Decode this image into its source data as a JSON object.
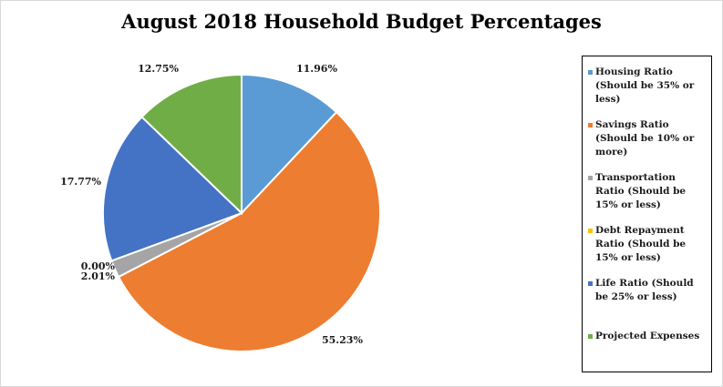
{
  "chart_data": {
    "type": "pie",
    "title": "August 2018 Household Budget Percentages",
    "start_angle_deg": 0,
    "slices": [
      {
        "label": "Housing Ratio (Should be 35% or less)",
        "value": 11.96,
        "display": "11.96%",
        "color": "#5B9BD5"
      },
      {
        "label": "Savings Ratio (Should be 10% or more)",
        "value": 55.23,
        "display": "55.23%",
        "color": "#ED7D31"
      },
      {
        "label": "Transportation Ratio (Should be 15% or less)",
        "value": 2.01,
        "display": "2.01%",
        "color": "#A5A5A5"
      },
      {
        "label": "Debt Repayment Ratio (Should be 15% or less)",
        "value": 0.0,
        "display": "0.00%",
        "color": "#FFC000"
      },
      {
        "label": "Life Ratio (Should be 25% or less)",
        "value": 17.77,
        "display": "17.77%",
        "color": "#4472C4"
      },
      {
        "label": "Projected Expenses",
        "value": 12.75,
        "display": "12.75%",
        "color": "#70AD47"
      }
    ],
    "legend_position": "right"
  }
}
